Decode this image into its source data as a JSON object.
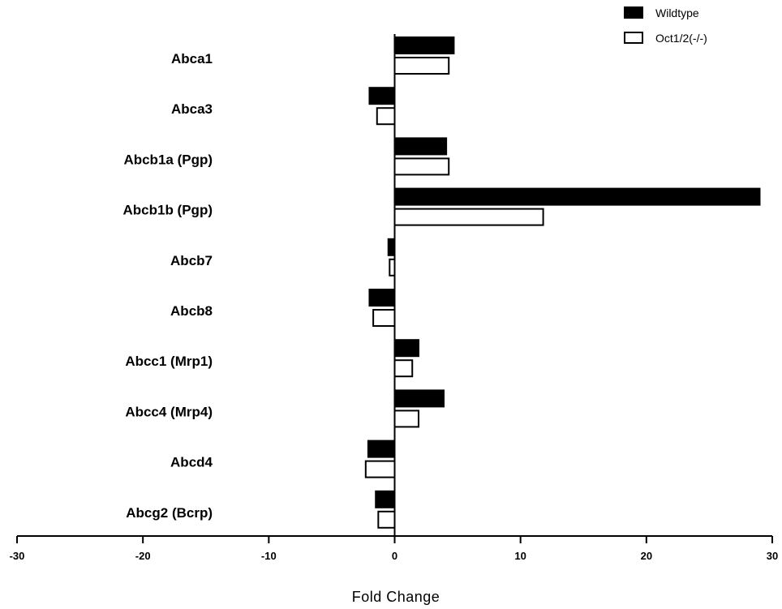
{
  "chart_data": {
    "type": "bar",
    "orientation": "horizontal",
    "categories": [
      "Abca1",
      "Abca3",
      "Abcb1a (Pgp)",
      "Abcb1b (Pgp)",
      "Abcb7",
      "Abcb8",
      "Abcc1 (Mrp1)",
      "Abcc4 (Mrp4)",
      "Abcd4",
      "Abcg2 (Bcrp)"
    ],
    "series": [
      {
        "name": "Wildtype",
        "color": "#000000",
        "values": [
          4.7,
          -2.0,
          4.1,
          29.0,
          -0.5,
          -2.0,
          1.9,
          3.9,
          -2.1,
          -1.5
        ]
      },
      {
        "name": "Oct1/2(-/-)",
        "color": "#ffffff",
        "values": [
          4.3,
          -1.4,
          4.3,
          11.8,
          -0.4,
          -1.7,
          1.4,
          1.9,
          -2.3,
          -1.3
        ]
      }
    ],
    "xlabel": "Fold Change",
    "xlim": [
      -30,
      30
    ],
    "xticks": [
      "-30",
      "-20",
      "-10",
      "0",
      "10",
      "20",
      "30"
    ],
    "grid": false,
    "legend_position": "top-right"
  }
}
